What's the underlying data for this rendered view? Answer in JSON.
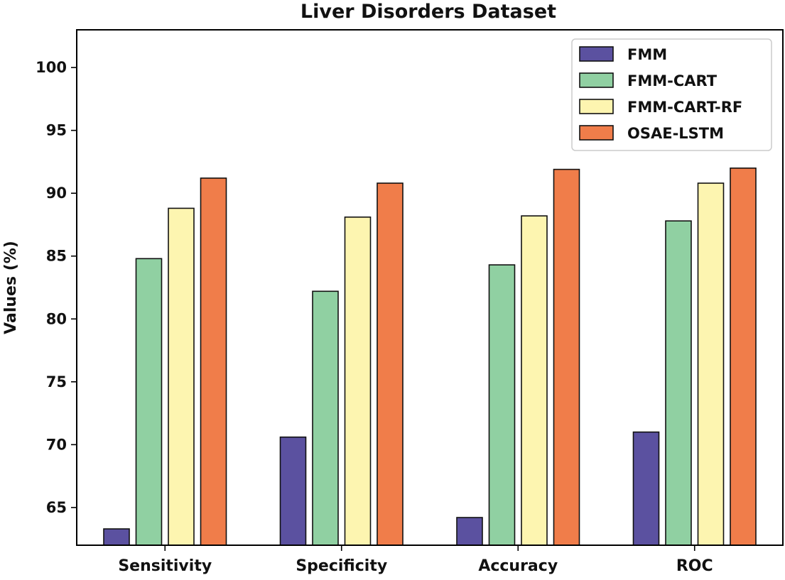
{
  "chart_data": {
    "type": "bar",
    "title": "Liver Disorders Dataset",
    "xlabel": "",
    "ylabel": "Values (%)",
    "ylim": [
      62,
      103
    ],
    "yticks": [
      65,
      70,
      75,
      80,
      85,
      90,
      95,
      100
    ],
    "grid": false,
    "legend_position": "top-right",
    "categories": [
      "Sensitivity",
      "Specificity",
      "Accuracy",
      "ROC"
    ],
    "series": [
      {
        "name": "FMM",
        "color": "#5b51a0",
        "values": [
          63.3,
          70.6,
          64.2,
          71.0
        ]
      },
      {
        "name": "FMM-CART",
        "color": "#90d0a2",
        "values": [
          84.8,
          82.2,
          84.3,
          87.8
        ]
      },
      {
        "name": "FMM-CART-RF",
        "color": "#fdf5b0",
        "values": [
          88.8,
          88.1,
          88.2,
          90.8
        ]
      },
      {
        "name": "OSAE-LSTM",
        "color": "#f07d4a",
        "values": [
          91.2,
          90.8,
          91.9,
          92.0
        ]
      }
    ]
  }
}
